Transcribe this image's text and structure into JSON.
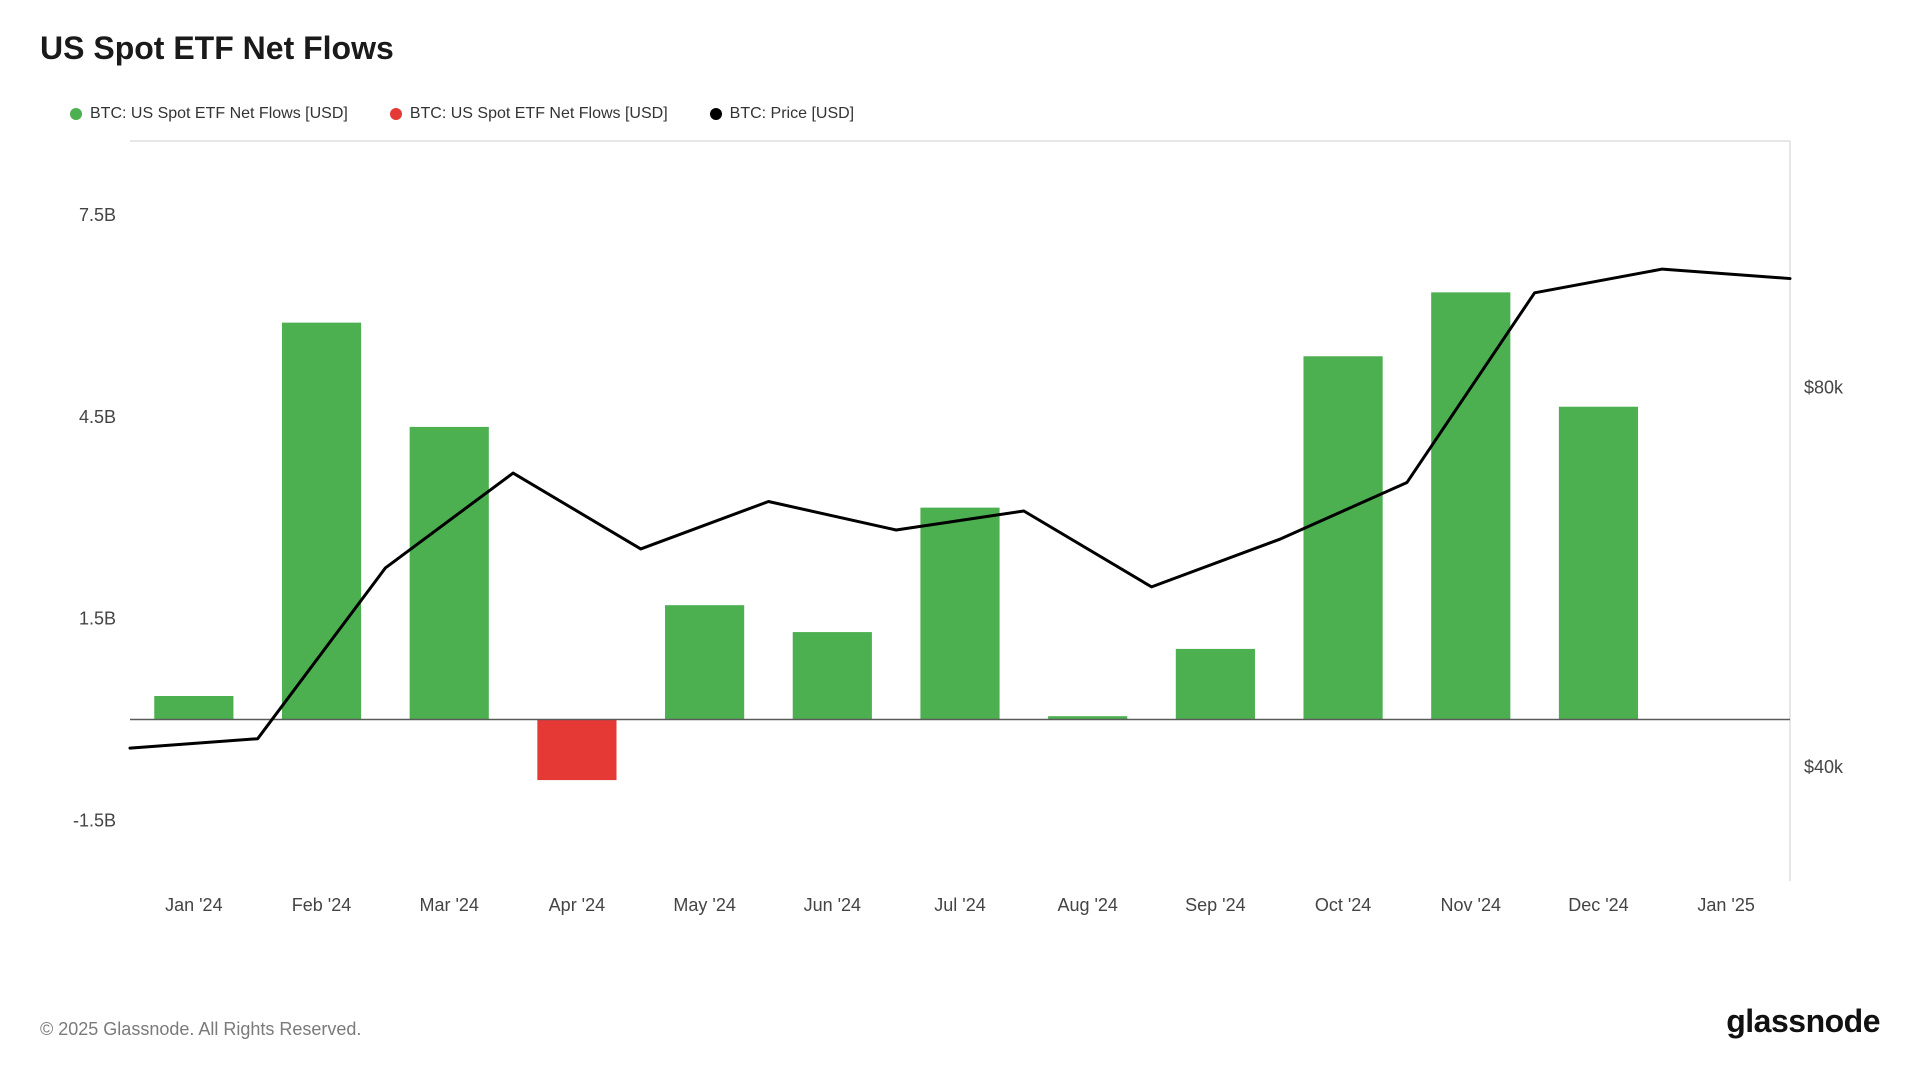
{
  "title": "US Spot ETF Net Flows",
  "legend": [
    {
      "label": "BTC: US Spot ETF Net Flows [USD]",
      "color": "#4caf50",
      "shape": "dot"
    },
    {
      "label": "BTC: US Spot ETF Net Flows [USD]",
      "color": "#e53935",
      "shape": "dot"
    },
    {
      "label": "BTC: Price [USD]",
      "color": "#000000",
      "shape": "dot"
    }
  ],
  "chart": {
    "type": "bar+line",
    "background_color": "#ffffff",
    "plot_border_color": "#cfcfcf",
    "zero_line_color": "#5a5a5a",
    "x_categories": [
      "Jan '24",
      "Feb '24",
      "Mar '24",
      "Apr '24",
      "May '24",
      "Jun '24",
      "Jul '24",
      "Aug '24",
      "Sep '24",
      "Oct '24",
      "Nov '24",
      "Dec '24",
      "Jan '25"
    ],
    "left_axis": {
      "ticks": [
        -1.5,
        1.5,
        4.5,
        7.5
      ],
      "tick_labels": [
        "-1.5B",
        "1.5B",
        "4.5B",
        "7.5B"
      ],
      "min": -2.4,
      "max": 8.6,
      "label_color": "#444",
      "label_fontsize": 18
    },
    "right_axis": {
      "ticks": [
        40,
        80
      ],
      "tick_labels": [
        "$40k",
        "$80k"
      ],
      "min": 28,
      "max": 106,
      "label_color": "#444",
      "label_fontsize": 18
    },
    "bars": {
      "values": [
        0.35,
        5.9,
        4.35,
        -0.9,
        1.7,
        1.3,
        3.15,
        0.05,
        1.05,
        5.4,
        6.35,
        4.65,
        null
      ],
      "positive_color": "#4caf50",
      "negative_color": "#e53935",
      "bar_width_ratio": 0.62
    },
    "line": {
      "values": [
        42,
        43,
        61,
        71,
        63,
        68,
        65,
        67,
        59,
        64,
        70,
        90,
        92.5,
        91.5
      ],
      "color": "#000000",
      "width": 3
    },
    "x_label_color": "#444",
    "x_label_fontsize": 18
  },
  "footer": {
    "copyright": "© 2025 Glassnode. All Rights Reserved.",
    "brand": "glassnode"
  }
}
